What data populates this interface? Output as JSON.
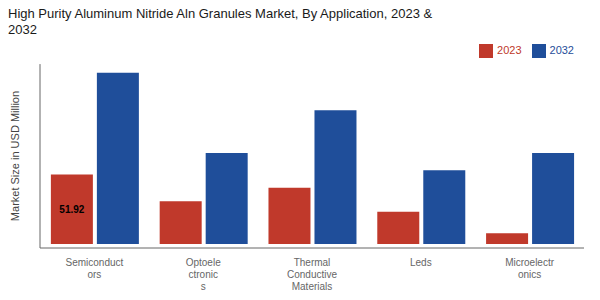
{
  "chart_data": {
    "type": "bar",
    "title": "High Purity Aluminum Nitride Aln Granules Market, By Application, 2023 &\n2032",
    "ylabel": "Market Size in USD Million",
    "categories": [
      "Semiconduct\nors",
      "Optoele\nctronic\ns",
      "Thermal\nConductive\nMaterials",
      "Leds",
      "Microelectr\nonics"
    ],
    "series": [
      {
        "name": "2023",
        "color": "#c0392b",
        "values": [
          51.92,
          32,
          42,
          24,
          8
        ]
      },
      {
        "name": "2032",
        "color": "#1f4e9a",
        "values": [
          128,
          68,
          100,
          55,
          68
        ]
      }
    ],
    "ylim": [
      -3,
      134.4
    ],
    "tick_labels": "x",
    "grid": false,
    "legend": "upper right",
    "annotations": [
      {
        "text": "51.92",
        "series": "2023",
        "category": "Semiconduct\nors"
      }
    ]
  }
}
